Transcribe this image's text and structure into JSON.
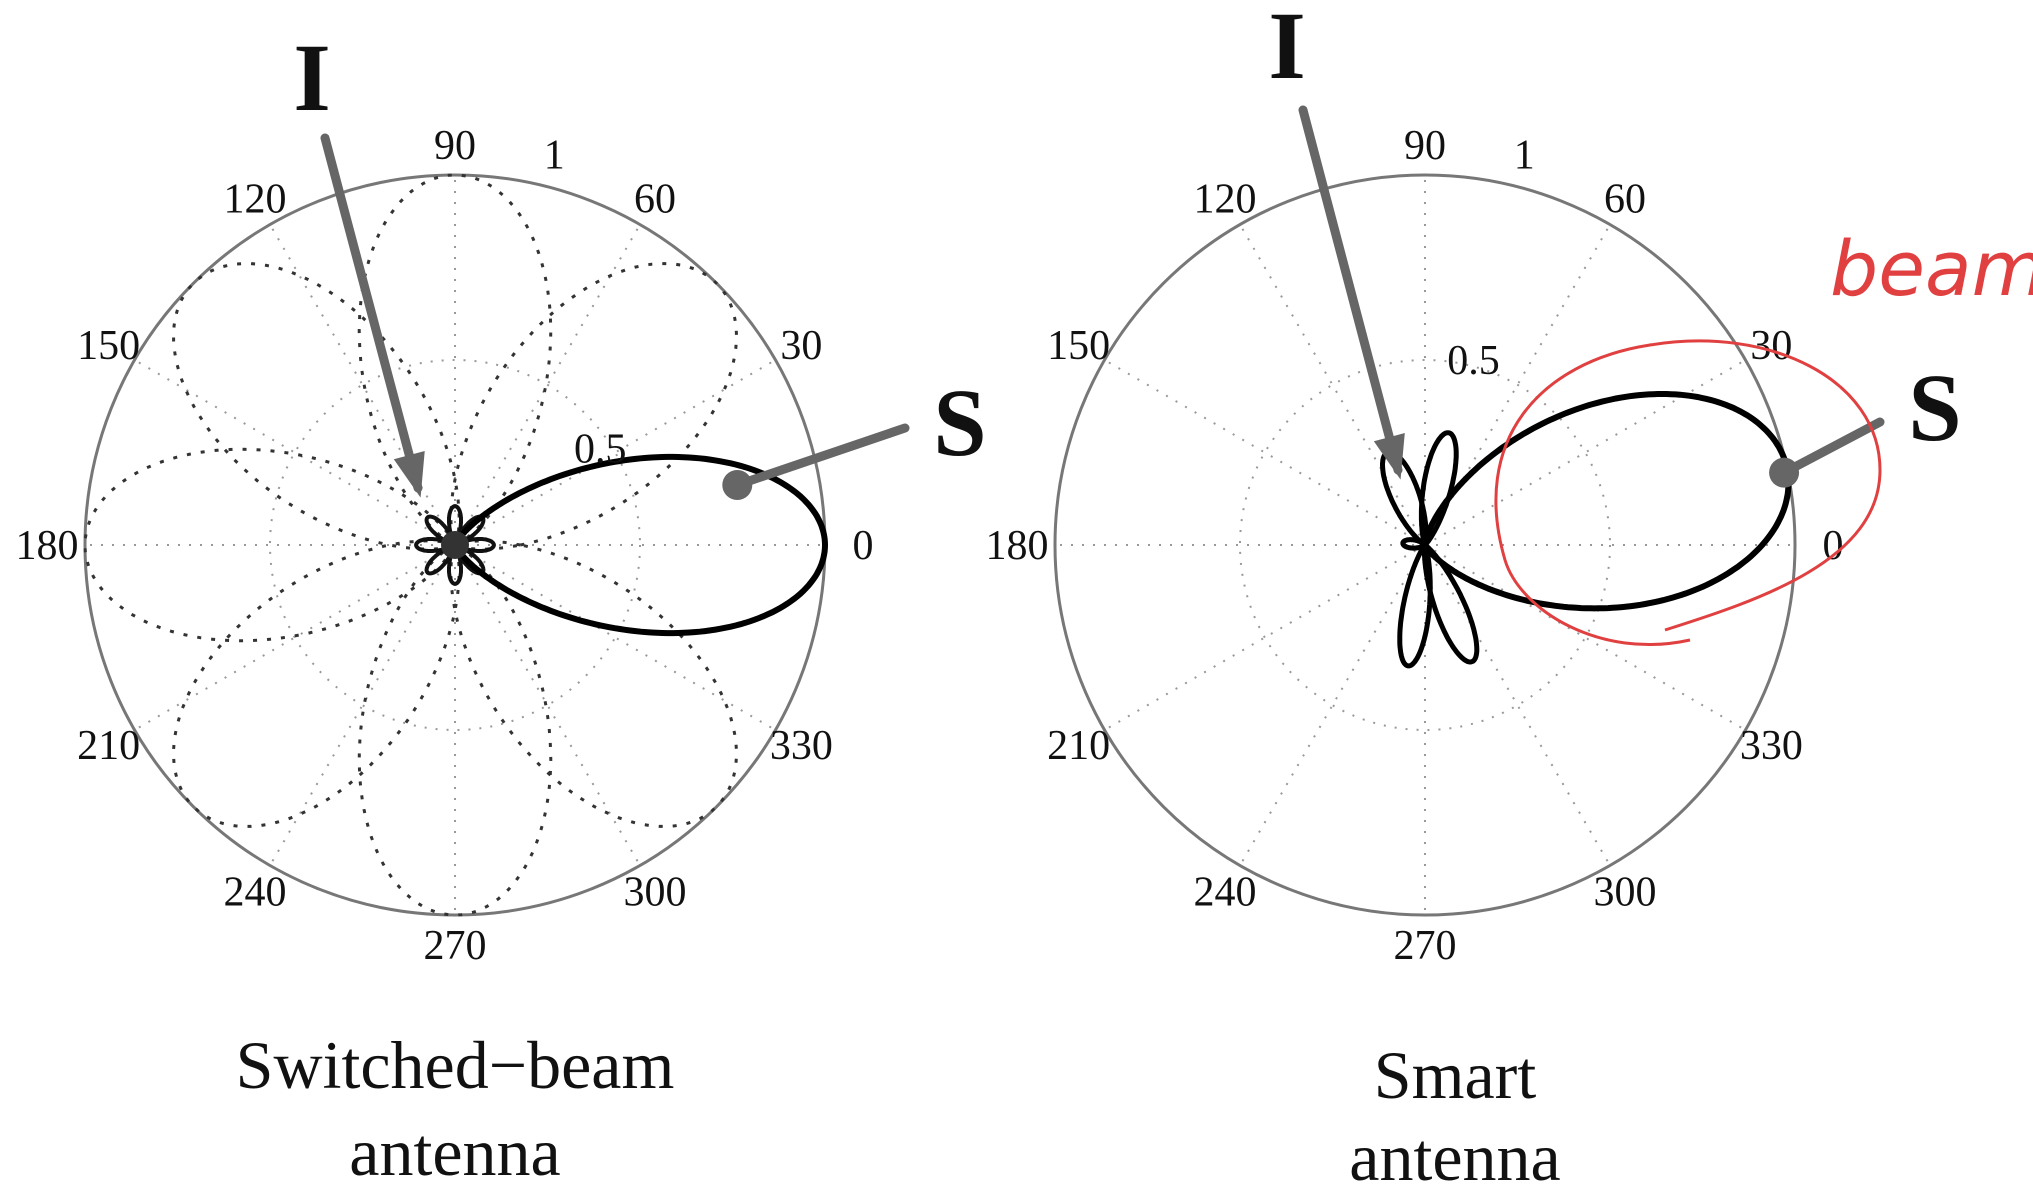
{
  "chart_data": [
    {
      "type": "polar",
      "angle_ticks": [
        "0",
        "30",
        "60",
        "90",
        "120",
        "150",
        "180",
        "210",
        "240",
        "270",
        "300",
        "330"
      ],
      "radial_ticks": [
        "0.5",
        "1"
      ],
      "rlim": [
        0,
        1
      ],
      "grid": true,
      "markers": {
        "signal": "S",
        "interference": "I"
      },
      "signal_direction_deg": 12,
      "interference_direction_deg": 150,
      "caption_lines": [
        "Switched−beam",
        "antenna"
      ],
      "series": [
        {
          "style": "solid",
          "main_lobe_direction_deg": 0,
          "main_lobe_peak": 1.0
        },
        {
          "style": "dotted",
          "beam_directions_deg": [
            45,
            90,
            135,
            180,
            225,
            270,
            315
          ],
          "beam_peak": 1.0
        }
      ]
    },
    {
      "type": "polar",
      "angle_ticks": [
        "0",
        "30",
        "60",
        "90",
        "120",
        "150",
        "180",
        "210",
        "240",
        "270",
        "300",
        "330"
      ],
      "radial_ticks": [
        "0.5",
        "1"
      ],
      "rlim": [
        0,
        1
      ],
      "grid": true,
      "markers": {
        "signal": "S",
        "interference": "I"
      },
      "signal_direction_deg": 30,
      "interference_direction_deg": 118,
      "caption_lines": [
        "Smart",
        "antenna"
      ],
      "annotation": "beam",
      "series": [
        {
          "style": "solid",
          "main_lobe_direction_deg": 12,
          "main_lobe_peak": 1.0,
          "null_toward_deg": 118
        }
      ]
    }
  ]
}
